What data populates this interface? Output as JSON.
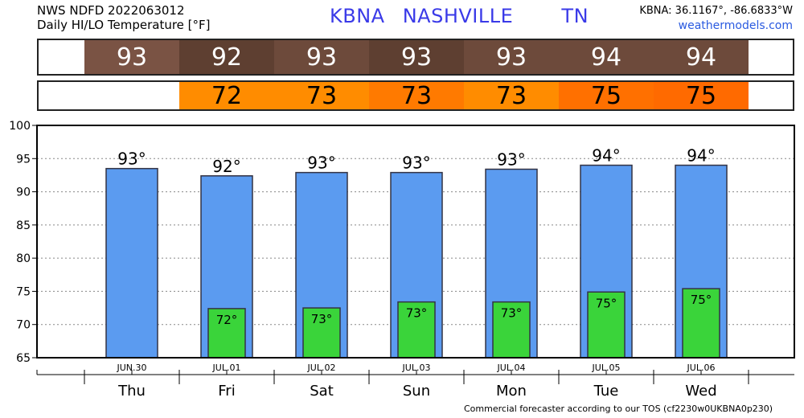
{
  "header": {
    "line1": "NWS NDFD 2022063012",
    "line2": "Daily HI/LO Temperature [°F]",
    "station": "KBNA",
    "city": "NASHVILLE",
    "state": "TN",
    "coords": "KBNA: 36.1167°, -86.6833°W",
    "site": "weathermodels.com"
  },
  "strips": {
    "hi": [
      {
        "text": "93",
        "color": "#7a5344"
      },
      {
        "text": "92",
        "color": "#5e3f31"
      },
      {
        "text": "93",
        "color": "#6d4a3b"
      },
      {
        "text": "93",
        "color": "#5e3f31"
      },
      {
        "text": "93",
        "color": "#6d4a3b"
      },
      {
        "text": "94",
        "color": "#6d4a3b"
      },
      {
        "text": "94",
        "color": "#6d4a3b"
      }
    ],
    "lo": [
      {
        "text": "",
        "color": "#ffffff"
      },
      {
        "text": "72",
        "color": "#ff8c00"
      },
      {
        "text": "73",
        "color": "#ff8c00"
      },
      {
        "text": "73",
        "color": "#ff7a00"
      },
      {
        "text": "73",
        "color": "#ff8c00"
      },
      {
        "text": "75",
        "color": "#ff7000"
      },
      {
        "text": "75",
        "color": "#ff6a00"
      }
    ]
  },
  "chart_data": {
    "type": "bar",
    "categories": [
      "Thu",
      "Fri",
      "Sat",
      "Sun",
      "Mon",
      "Tue",
      "Wed"
    ],
    "dates": [
      "JUN.30",
      "JUL.01",
      "JUL.02",
      "JUL.03",
      "JUL.04",
      "JUL.05",
      "JUL.06"
    ],
    "series": [
      {
        "values": [
          93.5,
          92.4,
          92.9,
          92.9,
          93.4,
          94.0,
          94.0
        ],
        "labels": [
          "93°",
          "92°",
          "93°",
          "93°",
          "93°",
          "94°",
          "94°"
        ],
        "color": "#5b9bf0"
      },
      {
        "values": [
          null,
          72.4,
          72.5,
          73.4,
          73.4,
          74.9,
          75.4
        ],
        "labels": [
          "",
          "72°",
          "73°",
          "73°",
          "73°",
          "75°",
          "75°"
        ],
        "color": "#3ad43a"
      }
    ],
    "ylim": [
      65,
      100
    ],
    "yticks": [
      "100",
      "95",
      "90",
      "85",
      "80",
      "75",
      "70",
      "65"
    ],
    "grid": true
  },
  "footer": "Commercial forecaster according to our TOS (cf2230w0UKBNA0p230)"
}
